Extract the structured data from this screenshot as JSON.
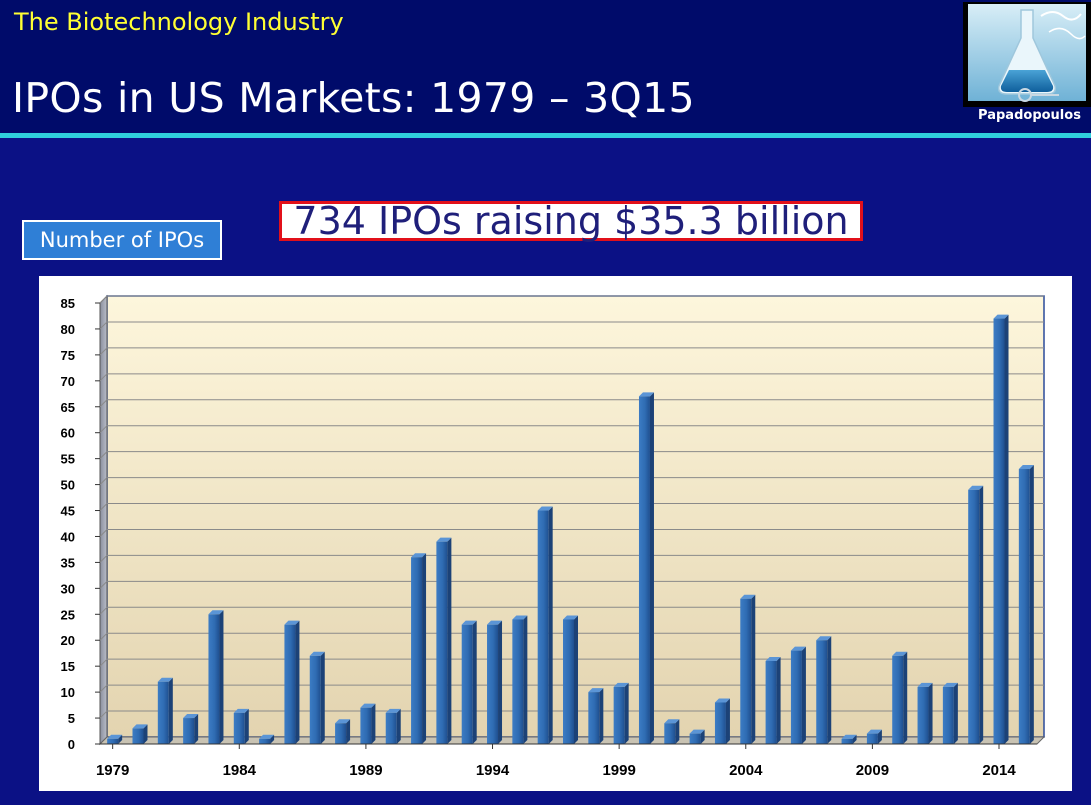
{
  "header": {
    "subtitle": "The Biotechnology Industry",
    "title": "IPOs in US Markets: 1979 – 3Q15",
    "logo_caption": "Papadopoulos",
    "rule_color": "#2fd0dc"
  },
  "summary": "734 IPOs raising $35.3 billion",
  "legend_label": "Number of IPOs",
  "chart_data": {
    "type": "bar",
    "categories": [
      "1979",
      "1980",
      "1981",
      "1982",
      "1983",
      "1984",
      "1985",
      "1986",
      "1987",
      "1988",
      "1989",
      "1990",
      "1991",
      "1992",
      "1993",
      "1994",
      "1995",
      "1996",
      "1997",
      "1998",
      "1999",
      "2000",
      "2001",
      "2002",
      "2003",
      "2004",
      "2005",
      "2006",
      "2007",
      "2008",
      "2009",
      "2010",
      "2011",
      "2012",
      "2013",
      "2014",
      "2015"
    ],
    "series": [
      {
        "values": [
          1,
          3,
          12,
          5,
          25,
          6,
          1,
          23,
          17,
          4,
          7,
          6,
          36,
          39,
          23,
          23,
          24,
          45,
          24,
          10,
          11,
          67,
          4,
          2,
          8,
          28,
          16,
          18,
          20,
          1,
          2,
          17,
          11,
          11,
          49,
          82,
          53
        ],
        "color": "#2f6cb3"
      }
    ],
    "x_tick_labels": [
      "1979",
      "1984",
      "1989",
      "1994",
      "1999",
      "2004",
      "2009",
      "2014"
    ],
    "y_ticks": [
      "0",
      "5",
      "10",
      "15",
      "20",
      "25",
      "30",
      "35",
      "40",
      "45",
      "50",
      "55",
      "60",
      "65",
      "70",
      "75",
      "80",
      "85"
    ],
    "ylim": [
      0,
      85
    ],
    "grid": true,
    "title": "",
    "xlabel": "",
    "ylabel": ""
  }
}
